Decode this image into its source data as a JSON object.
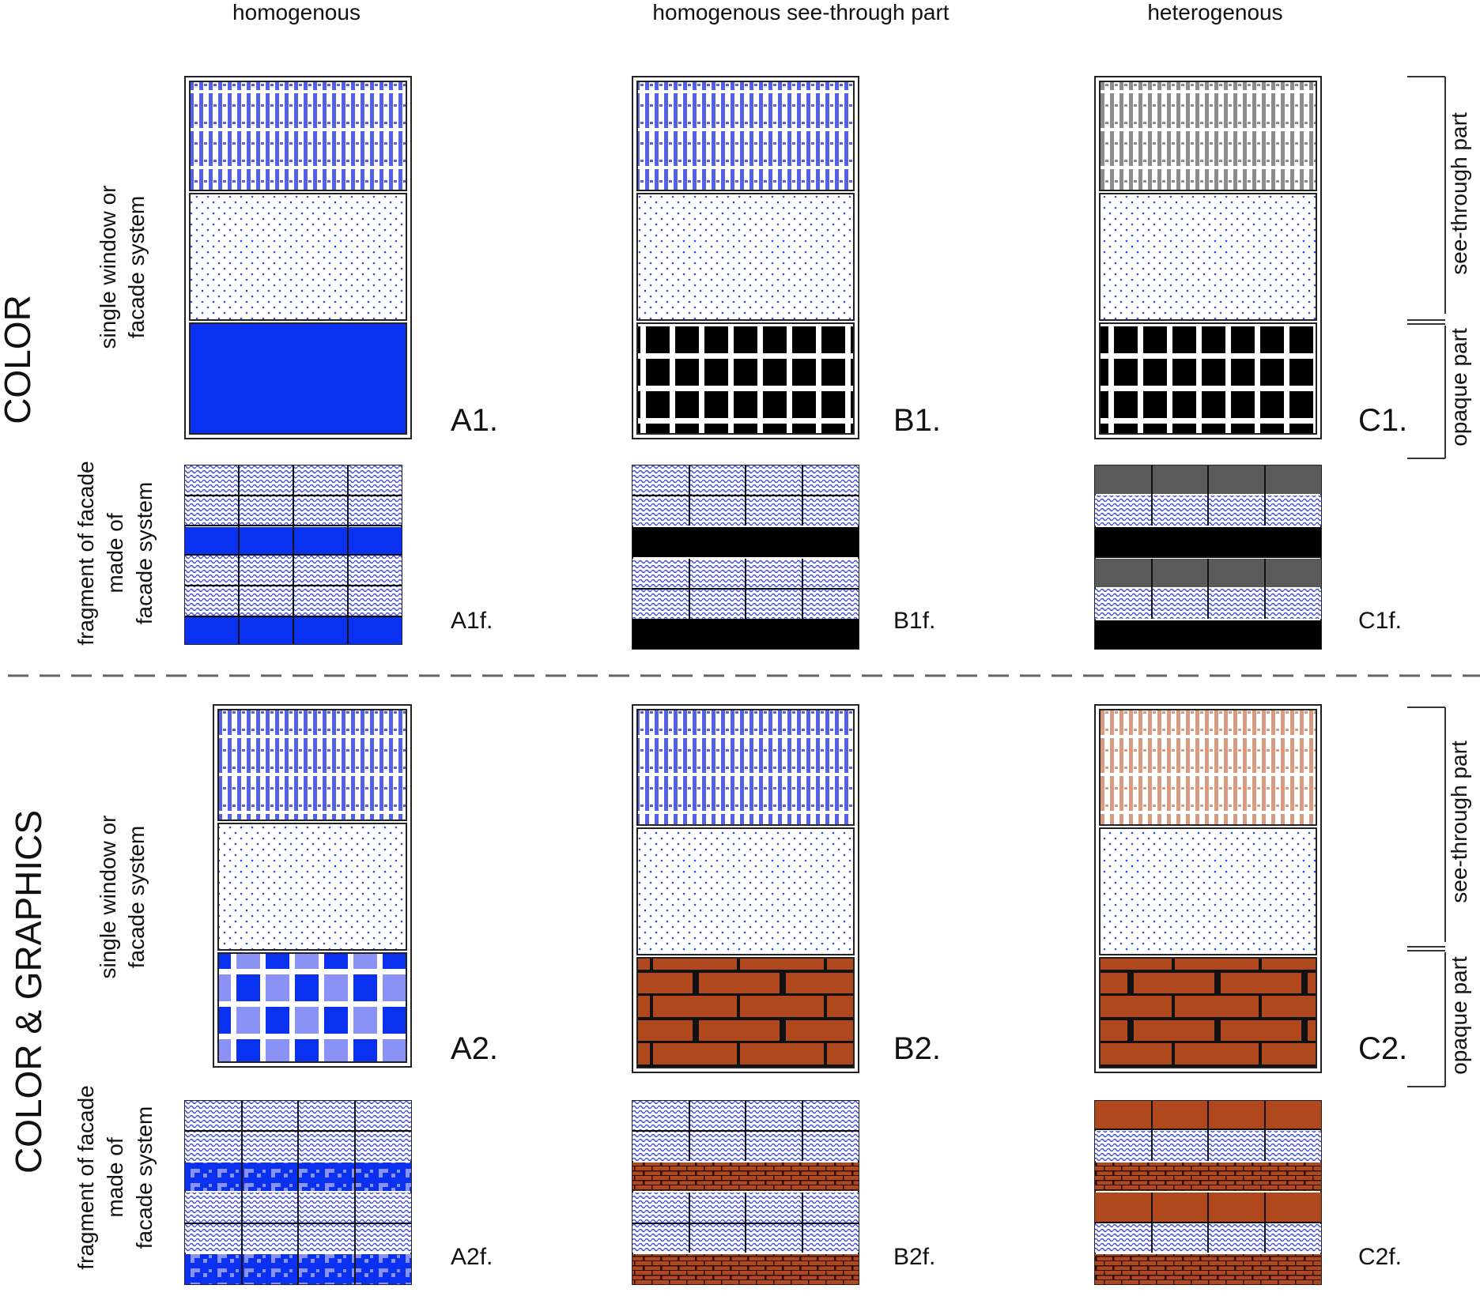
{
  "columns": {
    "a": "homogenous",
    "b": "homogenous see-through part",
    "c": "heterogenous"
  },
  "rows": {
    "top": "COLOR",
    "bottom": "COLOR & GRAPHICS"
  },
  "side_labels": {
    "window_line1": "single window or",
    "window_line2": "facade system",
    "fragment_line1": "fragment of facade",
    "fragment_line2": "made of",
    "fragment_line3": "facade system"
  },
  "bracket_labels": {
    "see_through": "see-through part",
    "opaque": "opaque part"
  },
  "panel_labels": {
    "A1": "A1.",
    "B1": "B1.",
    "C1": "C1.",
    "A1f": "A1f.",
    "B1f": "B1f.",
    "C1f": "C1f.",
    "A2": "A2.",
    "B2": "B2.",
    "C2": "C2.",
    "A2f": "A2f.",
    "B2f": "B2f.",
    "C2f": "C2f."
  },
  "colors": {
    "blue": "#0a30f0",
    "light_blue": "#8a92f5",
    "brick": "#b0481e",
    "grey": "#5a5a5a",
    "salmon": "#f0c8b0",
    "black": "#000000"
  }
}
